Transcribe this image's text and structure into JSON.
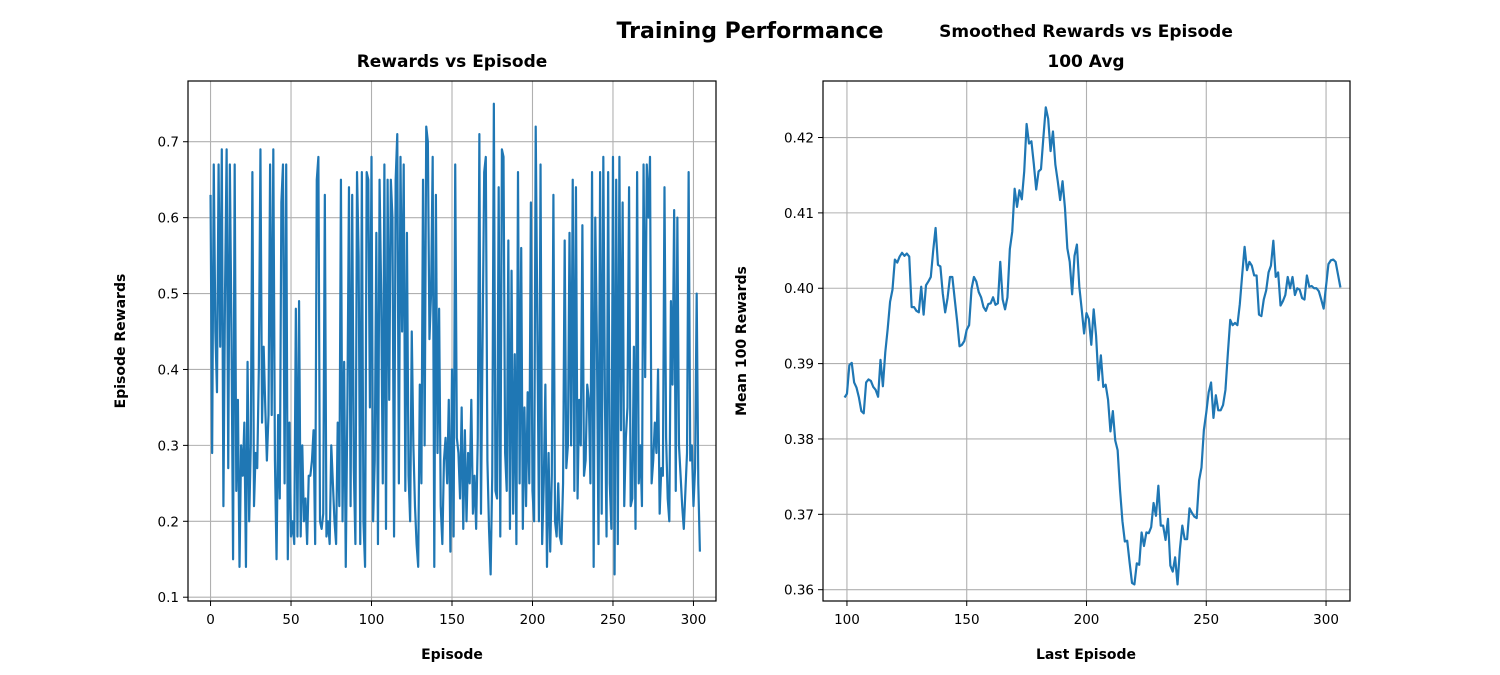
{
  "figure_title": "Training Performance",
  "chart_data": [
    {
      "type": "line",
      "title": "Rewards vs Episode",
      "xlabel": "Episode",
      "ylabel": "Episode Rewards",
      "xlim": [
        -14,
        314
      ],
      "ylim": [
        0.095,
        0.78
      ],
      "xticks": [
        0,
        50,
        100,
        150,
        200,
        250,
        300
      ],
      "yticks": [
        0.1,
        0.2,
        0.3,
        0.4,
        0.5,
        0.6,
        0.7
      ],
      "grid": true,
      "series": [
        {
          "color": "#1f77b4",
          "x_start": 0,
          "x_step": 1,
          "values": [
            0.63,
            0.29,
            0.67,
            0.45,
            0.37,
            0.67,
            0.43,
            0.69,
            0.22,
            0.5,
            0.69,
            0.27,
            0.67,
            0.45,
            0.15,
            0.67,
            0.24,
            0.36,
            0.14,
            0.3,
            0.26,
            0.33,
            0.14,
            0.41,
            0.2,
            0.3,
            0.66,
            0.22,
            0.29,
            0.27,
            0.4,
            0.69,
            0.33,
            0.43,
            0.35,
            0.28,
            0.34,
            0.67,
            0.34,
            0.69,
            0.28,
            0.15,
            0.34,
            0.23,
            0.62,
            0.67,
            0.25,
            0.67,
            0.15,
            0.33,
            0.18,
            0.2,
            0.17,
            0.48,
            0.18,
            0.49,
            0.18,
            0.3,
            0.2,
            0.23,
            0.17,
            0.26,
            0.26,
            0.28,
            0.32,
            0.17,
            0.65,
            0.68,
            0.2,
            0.19,
            0.21,
            0.63,
            0.18,
            0.2,
            0.17,
            0.3,
            0.25,
            0.2,
            0.17,
            0.33,
            0.22,
            0.65,
            0.2,
            0.41,
            0.14,
            0.35,
            0.64,
            0.22,
            0.63,
            0.27,
            0.17,
            0.66,
            0.55,
            0.17,
            0.66,
            0.2,
            0.14,
            0.66,
            0.65,
            0.35,
            0.68,
            0.2,
            0.28,
            0.58,
            0.17,
            0.65,
            0.5,
            0.25,
            0.67,
            0.19,
            0.65,
            0.36,
            0.65,
            0.6,
            0.18,
            0.65,
            0.71,
            0.25,
            0.68,
            0.45,
            0.67,
            0.24,
            0.58,
            0.26,
            0.2,
            0.45,
            0.3,
            0.22,
            0.17,
            0.14,
            0.38,
            0.25,
            0.65,
            0.3,
            0.72,
            0.7,
            0.44,
            0.5,
            0.68,
            0.14,
            0.63,
            0.29,
            0.48,
            0.22,
            0.17,
            0.28,
            0.31,
            0.25,
            0.36,
            0.16,
            0.4,
            0.18,
            0.67,
            0.31,
            0.29,
            0.23,
            0.35,
            0.19,
            0.32,
            0.2,
            0.29,
            0.25,
            0.36,
            0.21,
            0.26,
            0.19,
            0.31,
            0.71,
            0.21,
            0.44,
            0.66,
            0.68,
            0.28,
            0.19,
            0.13,
            0.26,
            0.75,
            0.24,
            0.23,
            0.64,
            0.18,
            0.69,
            0.68,
            0.29,
            0.24,
            0.57,
            0.19,
            0.53,
            0.21,
            0.42,
            0.17,
            0.66,
            0.25,
            0.56,
            0.19,
            0.35,
            0.22,
            0.37,
            0.25,
            0.62,
            0.24,
            0.2,
            0.72,
            0.46,
            0.2,
            0.67,
            0.17,
            0.25,
            0.38,
            0.14,
            0.29,
            0.16,
            0.26,
            0.63,
            0.2,
            0.18,
            0.25,
            0.18,
            0.17,
            0.25,
            0.57,
            0.27,
            0.3,
            0.58,
            0.3,
            0.65,
            0.24,
            0.64,
            0.23,
            0.36,
            0.3,
            0.59,
            0.26,
            0.28,
            0.38,
            0.36,
            0.25,
            0.66,
            0.14,
            0.6,
            0.44,
            0.17,
            0.66,
            0.21,
            0.68,
            0.36,
            0.18,
            0.66,
            0.25,
            0.19,
            0.68,
            0.13,
            0.65,
            0.17,
            0.68,
            0.32,
            0.62,
            0.22,
            0.31,
            0.35,
            0.64,
            0.22,
            0.23,
            0.43,
            0.19,
            0.66,
            0.25,
            0.3,
            0.22,
            0.67,
            0.39,
            0.67,
            0.6,
            0.68,
            0.25,
            0.28,
            0.33,
            0.29,
            0.4,
            0.21,
            0.27,
            0.26,
            0.64,
            0.31,
            0.23,
            0.2,
            0.49,
            0.38,
            0.61,
            0.24,
            0.6,
            0.3,
            0.26,
            0.22,
            0.19,
            0.24,
            0.29,
            0.66,
            0.28,
            0.3,
            0.22,
            0.27,
            0.5,
            0.25,
            0.16
          ]
        }
      ]
    },
    {
      "type": "line",
      "title_line1": "Smoothed Rewards vs Episode",
      "title_line2": "100 Avg",
      "xlabel": "Last Episode",
      "ylabel": "Mean 100 Rewards",
      "xlim": [
        90,
        310
      ],
      "ylim": [
        0.3585,
        0.4275
      ],
      "xticks": [
        100,
        150,
        200,
        250,
        300
      ],
      "yticks": [
        0.36,
        0.37,
        0.38,
        0.39,
        0.4,
        0.41,
        0.42
      ],
      "grid": true,
      "series": [
        {
          "color": "#1f77b4",
          "x_start": 99,
          "x_step": 1,
          "values": [
            0.3855,
            0.386,
            0.3898,
            0.3901,
            0.3875,
            0.3868,
            0.3855,
            0.3837,
            0.3834,
            0.3875,
            0.3879,
            0.3877,
            0.3869,
            0.3865,
            0.3856,
            0.3905,
            0.387,
            0.3915,
            0.3946,
            0.3982,
            0.3998,
            0.4038,
            0.4034,
            0.4042,
            0.4047,
            0.4043,
            0.4046,
            0.4042,
            0.3975,
            0.3975,
            0.397,
            0.3968,
            0.4002,
            0.3965,
            0.4004,
            0.4009,
            0.4015,
            0.405,
            0.408,
            0.4031,
            0.4029,
            0.3993,
            0.3968,
            0.3987,
            0.4015,
            0.4015,
            0.3985,
            0.3956,
            0.3923,
            0.3925,
            0.393,
            0.3945,
            0.3951,
            0.3999,
            0.4015,
            0.4009,
            0.3995,
            0.3988,
            0.3975,
            0.397,
            0.3979,
            0.398,
            0.3988,
            0.3978,
            0.398,
            0.4035,
            0.3985,
            0.3972,
            0.3988,
            0.4052,
            0.4075,
            0.4132,
            0.4108,
            0.413,
            0.4118,
            0.4155,
            0.4218,
            0.4192,
            0.4195,
            0.4165,
            0.4131,
            0.4155,
            0.4158,
            0.42,
            0.424,
            0.4225,
            0.4182,
            0.4208,
            0.4164,
            0.4142,
            0.4117,
            0.4142,
            0.4107,
            0.4053,
            0.4035,
            0.3992,
            0.4043,
            0.4058,
            0.4002,
            0.3972,
            0.394,
            0.3967,
            0.3959,
            0.3925,
            0.3972,
            0.3937,
            0.3878,
            0.3911,
            0.3869,
            0.3872,
            0.3852,
            0.381,
            0.3837,
            0.3798,
            0.3785,
            0.3732,
            0.3691,
            0.3664,
            0.3665,
            0.3636,
            0.3609,
            0.3607,
            0.3635,
            0.3633,
            0.3676,
            0.3658,
            0.3676,
            0.3675,
            0.3683,
            0.3715,
            0.3698,
            0.3738,
            0.3685,
            0.3685,
            0.3666,
            0.3694,
            0.3632,
            0.3624,
            0.3643,
            0.3607,
            0.3654,
            0.3685,
            0.3667,
            0.3667,
            0.3708,
            0.3702,
            0.3697,
            0.3695,
            0.3745,
            0.3762,
            0.3812,
            0.3835,
            0.3862,
            0.3875,
            0.3828,
            0.3858,
            0.3838,
            0.3838,
            0.3845,
            0.3865,
            0.3913,
            0.3958,
            0.3951,
            0.3954,
            0.3951,
            0.3979,
            0.4018,
            0.4055,
            0.4024,
            0.4035,
            0.403,
            0.4017,
            0.4017,
            0.3965,
            0.3963,
            0.3985,
            0.3997,
            0.4021,
            0.403,
            0.4063,
            0.4015,
            0.4021,
            0.3977,
            0.3983,
            0.3991,
            0.4015,
            0.4,
            0.4015,
            0.3991,
            0.4,
            0.3998,
            0.3987,
            0.3985,
            0.4017,
            0.4002,
            0.4003,
            0.4,
            0.4,
            0.3996,
            0.3985,
            0.3973,
            0.4003,
            0.4032,
            0.4037,
            0.4038,
            0.4035,
            0.4018,
            0.4001
          ]
        }
      ]
    }
  ]
}
